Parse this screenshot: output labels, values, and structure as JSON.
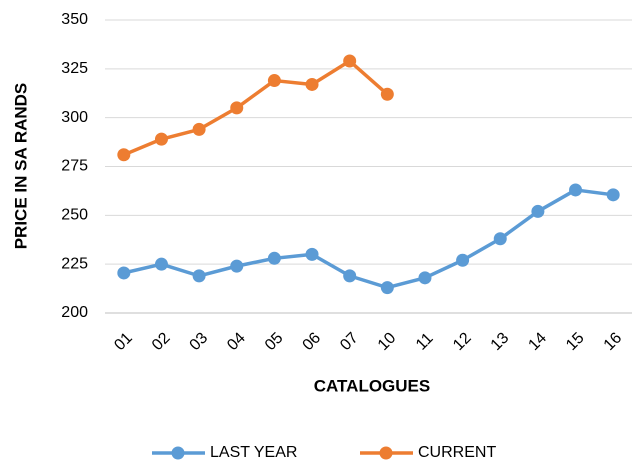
{
  "chart_data": {
    "type": "line",
    "x_label": "CATALOGUES",
    "y_label": "PRICE IN SA RANDS",
    "categories": [
      "01",
      "02",
      "03",
      "04",
      "05",
      "06",
      "07",
      "10",
      "11",
      "12",
      "13",
      "14",
      "15",
      "16"
    ],
    "series": [
      {
        "name": "LAST YEAR",
        "color": "#5b9bd5",
        "values": [
          220.5,
          225,
          219,
          224,
          228,
          230,
          219,
          213,
          218,
          227,
          238,
          252,
          263,
          260.5
        ]
      },
      {
        "name": "CURRENT",
        "color": "#ed7d31",
        "values": [
          281,
          289,
          294,
          305,
          319,
          317,
          329,
          312,
          null,
          null,
          null,
          null,
          null,
          null
        ]
      }
    ],
    "ylim": [
      200,
      350
    ],
    "yticks": [
      200,
      225,
      250,
      275,
      300,
      325,
      350
    ],
    "grid": true,
    "legend": "bottom"
  }
}
